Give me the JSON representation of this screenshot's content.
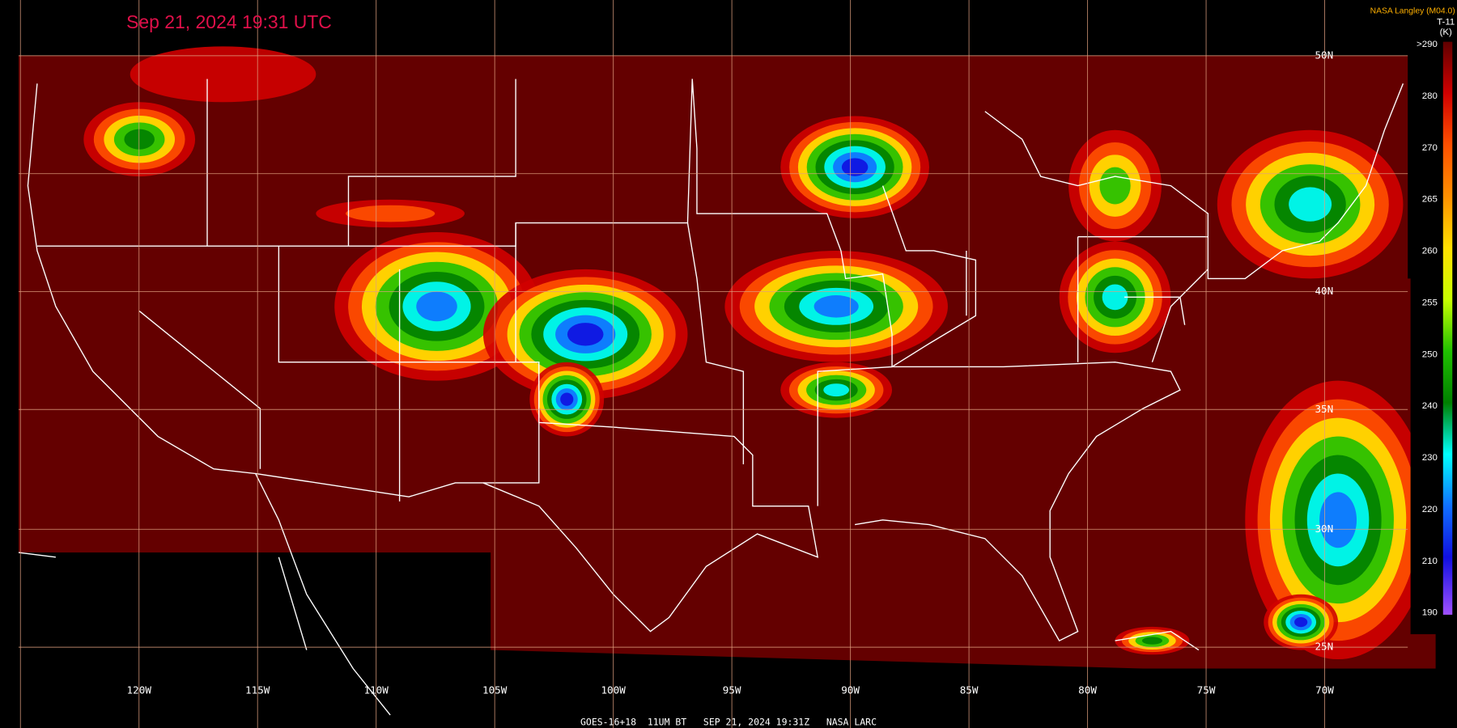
{
  "header": {
    "timestamp": "Sep 21, 2024 19:31 UTC",
    "credit": "NASA Langley (M04.0)"
  },
  "colorbar": {
    "title": "T-11",
    "unit": "(K)",
    "labels": [
      ">290",
      "280",
      "270",
      "265",
      "260",
      "255",
      "250",
      "240",
      "230",
      "220",
      "210",
      "190"
    ]
  },
  "lat_labels": [
    "50N",
    "40N",
    "35N",
    "30N",
    "25N"
  ],
  "lon_labels": [
    "120W",
    "115W",
    "110W",
    "105W",
    "100W",
    "95W",
    "90W",
    "85W",
    "80W",
    "75W",
    "70W"
  ],
  "footer": "GOES-16+18  11UM BT   SEP 21, 2024 19:31Z   NASA LARC"
}
